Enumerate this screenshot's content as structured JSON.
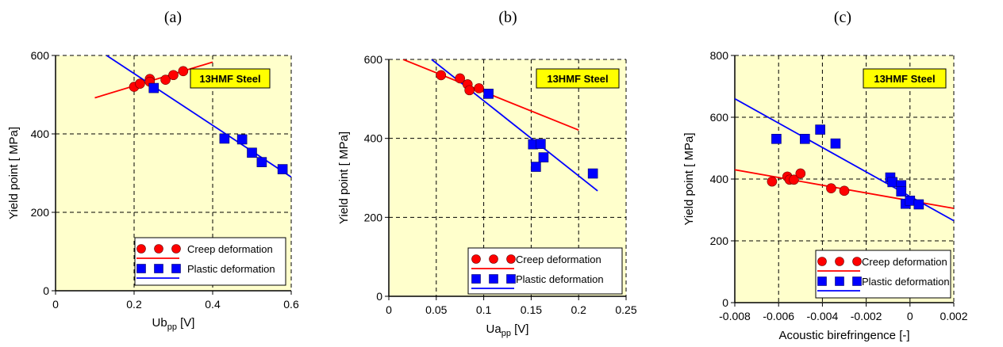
{
  "chart_data": [
    {
      "panel_label": "(a)",
      "type": "scatter",
      "xlabel_main": "Ub",
      "xlabel_sub": "pp",
      "xlabel_unit": " [V]",
      "ylabel": "Yield point [ MPa]",
      "xlim": [
        0,
        0.6
      ],
      "ylim": [
        0,
        600
      ],
      "xticks": [
        0,
        0.2,
        0.4,
        0.6
      ],
      "xtick_labels": [
        "0",
        "0.2",
        "0.4",
        "0.6"
      ],
      "yticks": [
        0,
        200,
        400,
        600
      ],
      "ytick_labels": [
        "0",
        "200",
        "400",
        "600"
      ],
      "grid": true,
      "annotation": "13HMF Steel",
      "legend_position": "bottom-right",
      "series": [
        {
          "name": "Creep deformation",
          "marker": "circle",
          "color": "#ff0000",
          "points": [
            [
              0.2,
              520
            ],
            [
              0.215,
              528
            ],
            [
              0.24,
              540
            ],
            [
              0.24,
              533
            ],
            [
              0.28,
              538
            ],
            [
              0.3,
              550
            ],
            [
              0.325,
              560
            ]
          ],
          "fit_line": [
            [
              0.1,
              492
            ],
            [
              0.4,
              583
            ]
          ]
        },
        {
          "name": "Plastic deformation",
          "marker": "square",
          "color": "#0000ff",
          "points": [
            [
              0.25,
              517
            ],
            [
              0.43,
              388
            ],
            [
              0.475,
              386
            ],
            [
              0.5,
              352
            ],
            [
              0.525,
              328
            ],
            [
              0.578,
              310
            ]
          ],
          "fit_line": [
            [
              0.13,
              600
            ],
            [
              0.6,
              290
            ]
          ]
        }
      ]
    },
    {
      "panel_label": "(b)",
      "type": "scatter",
      "xlabel_main": "Ua",
      "xlabel_sub": "pp",
      "xlabel_unit": " [V]",
      "ylabel": "Yield point [ MPa]",
      "xlim": [
        0,
        0.25
      ],
      "ylim": [
        0,
        600
      ],
      "xticks": [
        0,
        0.05,
        0.1,
        0.15,
        0.2,
        0.25
      ],
      "xtick_labels": [
        "0",
        "0.05",
        "0.1",
        "0.15",
        "0.2",
        "0.25"
      ],
      "yticks": [
        0,
        200,
        400,
        600
      ],
      "ytick_labels": [
        "0",
        "200",
        "400",
        "600"
      ],
      "grid": true,
      "annotation": "13HMF Steel",
      "legend_position": "bottom-right",
      "series": [
        {
          "name": "Creep deformation",
          "marker": "circle",
          "color": "#ff0000",
          "points": [
            [
              0.055,
              560
            ],
            [
              0.075,
              552
            ],
            [
              0.083,
              537
            ],
            [
              0.085,
              522
            ],
            [
              0.095,
              527
            ]
          ],
          "fit_line": [
            [
              0.015,
              600
            ],
            [
              0.2,
              421
            ]
          ]
        },
        {
          "name": "Plastic deformation",
          "marker": "square",
          "color": "#0000ff",
          "points": [
            [
              0.105,
              513
            ],
            [
              0.152,
              385
            ],
            [
              0.16,
              386
            ],
            [
              0.155,
              328
            ],
            [
              0.163,
              352
            ],
            [
              0.215,
              311
            ]
          ],
          "fit_line": [
            [
              0.045,
              600
            ],
            [
              0.22,
              267
            ]
          ]
        }
      ]
    },
    {
      "panel_label": "(c)",
      "type": "scatter",
      "xlabel": "Acoustic birefringence [-]",
      "ylabel": "Yield point [ MPa]",
      "xlim": [
        -0.008,
        0.002
      ],
      "ylim": [
        0,
        800
      ],
      "xticks": [
        -0.008,
        -0.006,
        -0.004,
        -0.002,
        0,
        0.002
      ],
      "xtick_labels": [
        "-0.008",
        "-0.006",
        "-0.004",
        "-0.002",
        "0",
        "0.002"
      ],
      "yticks": [
        0,
        200,
        400,
        600,
        800
      ],
      "ytick_labels": [
        "0",
        "200",
        "400",
        "600",
        "800"
      ],
      "grid": true,
      "annotation": "13HMF Steel",
      "legend_position": "bottom-right",
      "series": [
        {
          "name": "Creep deformation",
          "marker": "circle",
          "color": "#ff0000",
          "points": [
            [
              -0.0063,
              392
            ],
            [
              -0.0056,
              408
            ],
            [
              -0.0055,
              398
            ],
            [
              -0.0053,
              398
            ],
            [
              -0.005,
              418
            ],
            [
              -0.0036,
              370
            ],
            [
              -0.003,
              362
            ]
          ],
          "fit_line": [
            [
              -0.008,
              430
            ],
            [
              0.002,
              305
            ]
          ]
        },
        {
          "name": "Plastic deformation",
          "marker": "square",
          "color": "#0000ff",
          "points": [
            [
              -0.0061,
              530
            ],
            [
              -0.0048,
              530
            ],
            [
              -0.0041,
              560
            ],
            [
              -0.0034,
              515
            ],
            [
              -0.0009,
              405
            ],
            [
              -0.0008,
              390
            ],
            [
              -0.0004,
              380
            ],
            [
              -0.0004,
              360
            ],
            [
              -0.0002,
              320
            ],
            [
              0.0,
              330
            ],
            [
              0.0004,
              318
            ]
          ],
          "fit_line": [
            [
              -0.008,
              660
            ],
            [
              0.002,
              265
            ]
          ]
        }
      ]
    }
  ]
}
